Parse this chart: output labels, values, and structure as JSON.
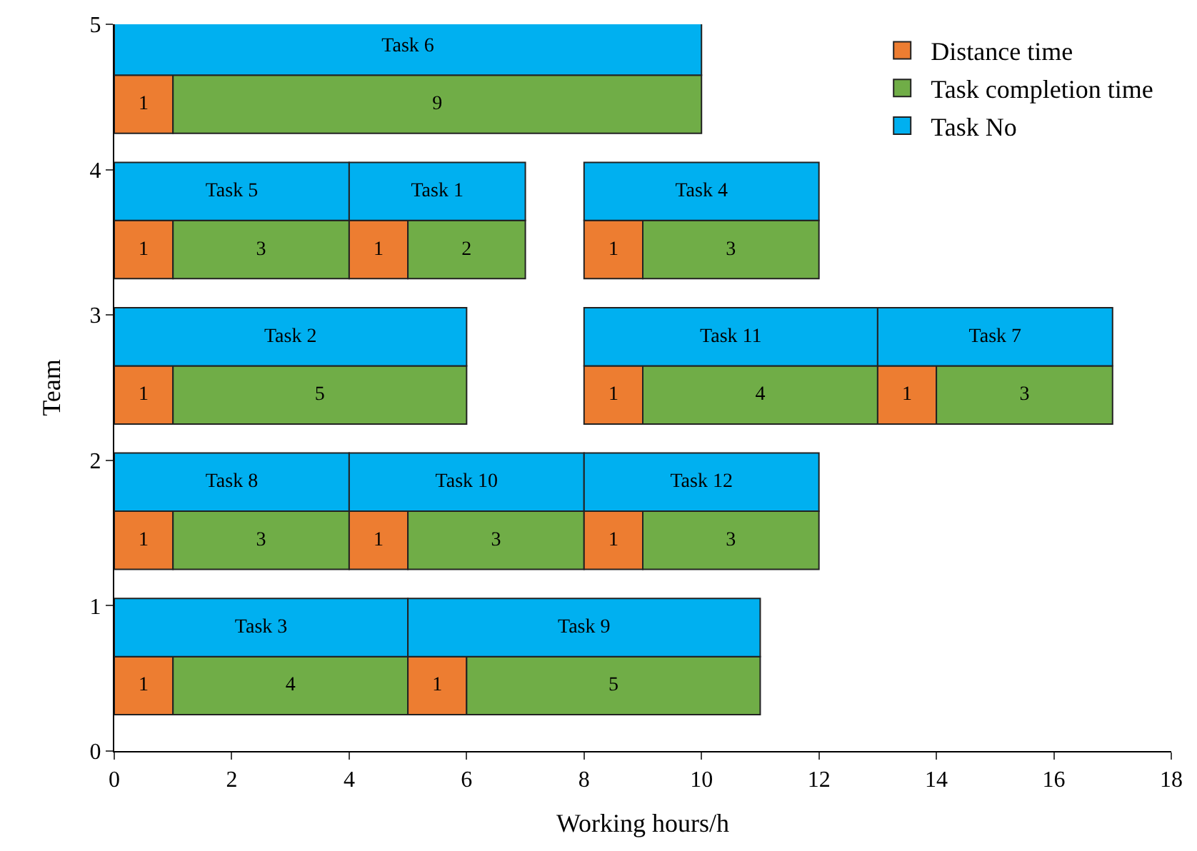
{
  "chart_data": {
    "type": "bar",
    "orientation": "horizontal",
    "xlabel": "Working hours/h",
    "ylabel": "Team",
    "xlim": [
      0,
      18
    ],
    "xticks": [
      0,
      2,
      4,
      6,
      8,
      10,
      12,
      14,
      16,
      18
    ],
    "ylim": [
      0,
      5
    ],
    "yticks": [
      0,
      1,
      2,
      3,
      4,
      5
    ],
    "legend": "top right",
    "data_labels": true,
    "series": [
      {
        "name": "Distance time",
        "color": "#ed7d31",
        "x": [
          4.45,
          3.45,
          2.45,
          1.45,
          0.45
        ],
        "base": [
          0,
          0,
          0,
          0,
          0
        ],
        "values": [
          1,
          1,
          1,
          1,
          1
        ]
      },
      {
        "name": "Task completion time",
        "color": "#70ad47",
        "x": [
          4.45,
          3.45,
          2.45,
          1.45,
          0.45
        ],
        "base": [
          1,
          1,
          1,
          1,
          1
        ],
        "values": [
          9,
          3,
          5,
          3,
          4
        ]
      },
      {
        "name": "Task No",
        "color": "#00b0f0",
        "x": [
          4.85,
          3.85,
          2.85,
          1.85,
          0.85
        ],
        "base": [
          0,
          0,
          0,
          0,
          0
        ],
        "values": [
          10,
          4,
          6,
          4,
          5
        ],
        "value_labels": [
          "Task 6",
          "Task 5",
          "Task 2",
          "Task 8",
          "Task 3"
        ]
      },
      {
        "color": "#ed7d31",
        "x": [
          3.45,
          2.45,
          1.45,
          0.45
        ],
        "base": [
          4,
          8,
          4,
          5
        ],
        "values": [
          1,
          1,
          1,
          1
        ]
      },
      {
        "color": "#70ad47",
        "x": [
          3.45,
          2.45,
          1.45,
          0.45
        ],
        "base": [
          5,
          9,
          5,
          6
        ],
        "values": [
          2,
          4,
          3,
          5
        ]
      },
      {
        "color": "#00b0f0",
        "x": [
          3.85,
          2.85,
          1.85,
          0.85
        ],
        "base": [
          4,
          8,
          4,
          5
        ],
        "values": [
          3,
          5,
          4,
          6
        ],
        "value_labels": [
          "Task 1",
          "Task 11",
          "Task 10",
          "Task 9"
        ]
      },
      {
        "color": "#ed7d31",
        "x": [
          3.45,
          2.45,
          1.45
        ],
        "base": [
          8,
          13,
          8
        ],
        "values": [
          1,
          1,
          1
        ]
      },
      {
        "color": "#70ad47",
        "x": [
          3.45,
          2.45,
          1.45
        ],
        "base": [
          9,
          14,
          9
        ],
        "values": [
          3,
          3,
          3
        ]
      },
      {
        "color": "#00b0f0",
        "x": [
          3.85,
          2.85,
          1.85
        ],
        "base": [
          8,
          13,
          8
        ],
        "values": [
          4,
          4,
          4
        ],
        "value_labels": [
          "Task 4",
          "Task 7",
          "Task 12"
        ]
      }
    ]
  }
}
